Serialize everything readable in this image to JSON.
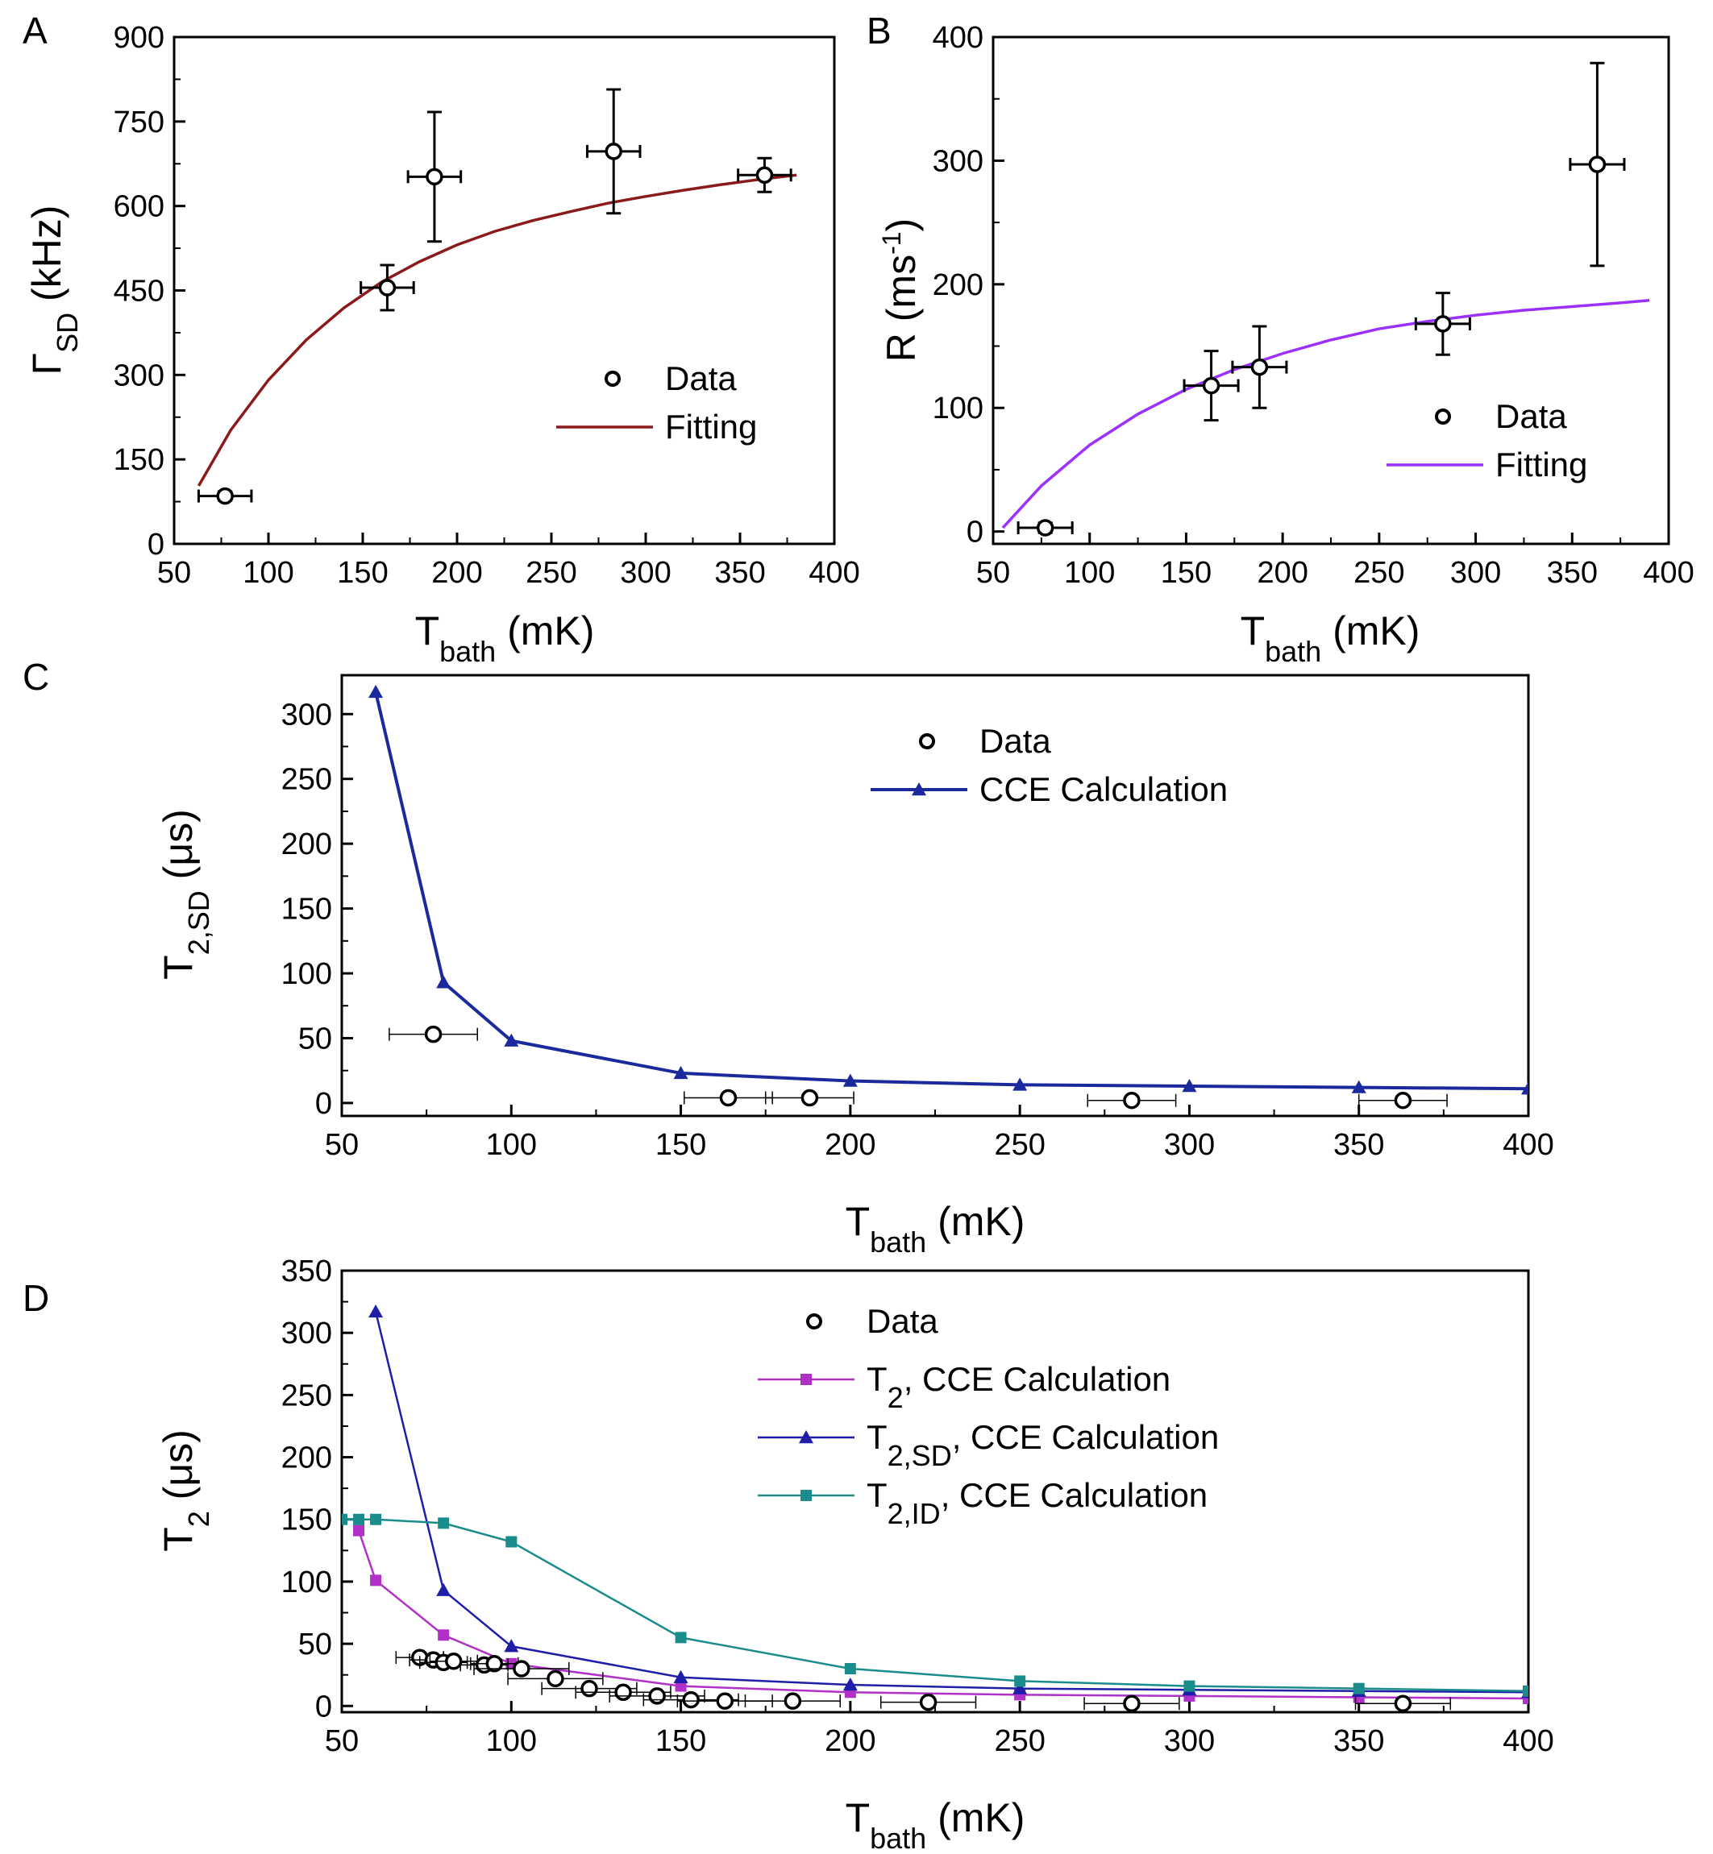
{
  "chart_data": [
    {
      "panel": "A",
      "type": "scatter",
      "xlabel": "T",
      "xlabel_sub": "bath",
      "xlabel_unit": " (mK)",
      "ylabel": "Γ",
      "ylabel_sub": "SD",
      "ylabel_unit": " (kHz)",
      "xlim": [
        50,
        400
      ],
      "ylim": [
        0,
        900
      ],
      "xticks": [
        50,
        100,
        150,
        200,
        250,
        300,
        350,
        400
      ],
      "yticks": [
        0,
        150,
        300,
        450,
        600,
        750,
        900
      ],
      "data": {
        "name": "Data",
        "x": [
          77,
          163,
          188,
          283,
          363
        ],
        "y": [
          85,
          455,
          652,
          697,
          655
        ],
        "xerr": [
          14,
          14,
          14,
          14,
          14
        ],
        "yerr": [
          8,
          40,
          115,
          110,
          30
        ]
      },
      "fit": {
        "name": "Fitting",
        "color": "#8b1a1a",
        "x": [
          63,
          80,
          100,
          120,
          140,
          160,
          180,
          200,
          220,
          240,
          260,
          280,
          300,
          320,
          340,
          360,
          380
        ],
        "y": [
          103,
          202,
          291,
          362,
          419,
          465,
          501,
          531,
          555,
          574,
          590,
          605,
          617,
          628,
          638,
          647,
          655
        ]
      },
      "legend": [
        "Data",
        "Fitting"
      ]
    },
    {
      "panel": "B",
      "type": "scatter",
      "xlabel": "T",
      "xlabel_sub": "bath",
      "xlabel_unit": " (mK)",
      "ylabel": "R (ms",
      "ylabel_sup": "-1",
      "ylabel_end": ")",
      "xlim": [
        50,
        400
      ],
      "ylim": [
        -10,
        400
      ],
      "xticks": [
        50,
        100,
        150,
        200,
        250,
        300,
        350,
        400
      ],
      "yticks": [
        0,
        100,
        200,
        300,
        400
      ],
      "data": {
        "name": "Data",
        "x": [
          77,
          163,
          188,
          283,
          363
        ],
        "y": [
          3,
          118,
          133,
          168,
          297
        ],
        "xerr": [
          14,
          14,
          14,
          14,
          14
        ],
        "yerr": [
          4,
          28,
          33,
          25,
          82
        ]
      },
      "fit": {
        "name": "Fitting",
        "color": "#9b30ff",
        "x": [
          55,
          75,
          100,
          125,
          150,
          175,
          200,
          225,
          250,
          275,
          300,
          325,
          350,
          375,
          390
        ],
        "y": [
          3,
          37,
          70,
          95,
          115,
          131,
          144,
          155,
          164,
          170,
          175,
          179,
          182,
          185,
          187
        ]
      },
      "legend": [
        "Data",
        "Fitting"
      ]
    },
    {
      "panel": "C",
      "type": "scatter",
      "xlabel": "T",
      "xlabel_sub": "bath",
      "xlabel_unit": " (mK)",
      "ylabel": "T",
      "ylabel_sub": "2,SD",
      "ylabel_unit": " (μs)",
      "xlim": [
        50,
        400
      ],
      "ylim": [
        -10,
        330
      ],
      "xticks": [
        50,
        100,
        150,
        200,
        250,
        300,
        350,
        400
      ],
      "yticks": [
        0,
        50,
        100,
        150,
        200,
        250,
        300
      ],
      "data": {
        "name": "Data",
        "x": [
          77,
          164,
          188,
          283,
          363
        ],
        "y": [
          53,
          4,
          4,
          2,
          2
        ],
        "xerr": [
          13,
          13,
          13,
          13,
          13
        ]
      },
      "series": [
        {
          "name": "CCE Calculation",
          "color": "#1a2a9c",
          "marker": "triangle",
          "x": [
            60,
            80,
            100,
            150,
            200,
            250,
            300,
            350,
            400
          ],
          "y": [
            317,
            93,
            48,
            23,
            17,
            14,
            13,
            12,
            11
          ]
        }
      ],
      "legend": [
        "Data",
        "CCE Calculation"
      ]
    },
    {
      "panel": "D",
      "type": "scatter",
      "xlabel": "T",
      "xlabel_sub": "bath",
      "xlabel_unit": " (mK)",
      "ylabel": "T",
      "ylabel_sub": "2",
      "ylabel_unit": " (μs)",
      "xlim": [
        50,
        400
      ],
      "ylim": [
        -5,
        350
      ],
      "xticks": [
        50,
        100,
        150,
        200,
        250,
        300,
        350,
        400
      ],
      "yticks": [
        0,
        50,
        100,
        150,
        200,
        250,
        300,
        350
      ],
      "data": {
        "name": "Data",
        "x": [
          73,
          77,
          80,
          83,
          92,
          95,
          103,
          113,
          123,
          133,
          143,
          153,
          163,
          183,
          223,
          283,
          363
        ],
        "y": [
          39,
          37,
          35,
          36,
          33,
          34,
          30,
          22,
          14,
          11,
          8,
          5,
          4,
          4,
          3,
          2,
          2
        ],
        "xerr": [
          7,
          7,
          7,
          7,
          7,
          7,
          14,
          14,
          14,
          14,
          14,
          14,
          14,
          14,
          14,
          14,
          14
        ]
      },
      "series": [
        {
          "name": "T2, CCE Calculation",
          "label_main": "T",
          "label_sub": "2",
          "label_rest": ", CCE Calculation",
          "color": "#b030c8",
          "marker": "square",
          "x": [
            55,
            60,
            80,
            100,
            150,
            200,
            250,
            300,
            350,
            400
          ],
          "y": [
            141,
            101,
            57,
            34,
            16,
            11,
            9,
            8,
            7,
            6
          ]
        },
        {
          "name": "T2,SD, CCE Calculation",
          "label_main": "T",
          "label_sub": "2,SD",
          "label_rest": ", CCE Calculation",
          "color": "#1e1ea8",
          "marker": "triangle",
          "x": [
            60,
            80,
            100,
            150,
            200,
            250,
            300,
            350,
            400
          ],
          "y": [
            317,
            93,
            48,
            23,
            17,
            14,
            13,
            12,
            11
          ]
        },
        {
          "name": "T2,ID, CCE Calculation",
          "label_main": "T",
          "label_sub": "2,ID",
          "label_rest": ", CCE Calculation",
          "color": "#1a8c8c",
          "marker": "square",
          "x": [
            50,
            55,
            60,
            80,
            100,
            150,
            200,
            250,
            300,
            350,
            400
          ],
          "y": [
            150,
            150,
            150,
            147,
            132,
            55,
            30,
            20,
            16,
            14,
            12
          ]
        }
      ],
      "legend": [
        "Data",
        "T2, CCE Calculation",
        "T2,SD, CCE Calculation",
        "T2,ID, CCE Calculation"
      ]
    }
  ]
}
